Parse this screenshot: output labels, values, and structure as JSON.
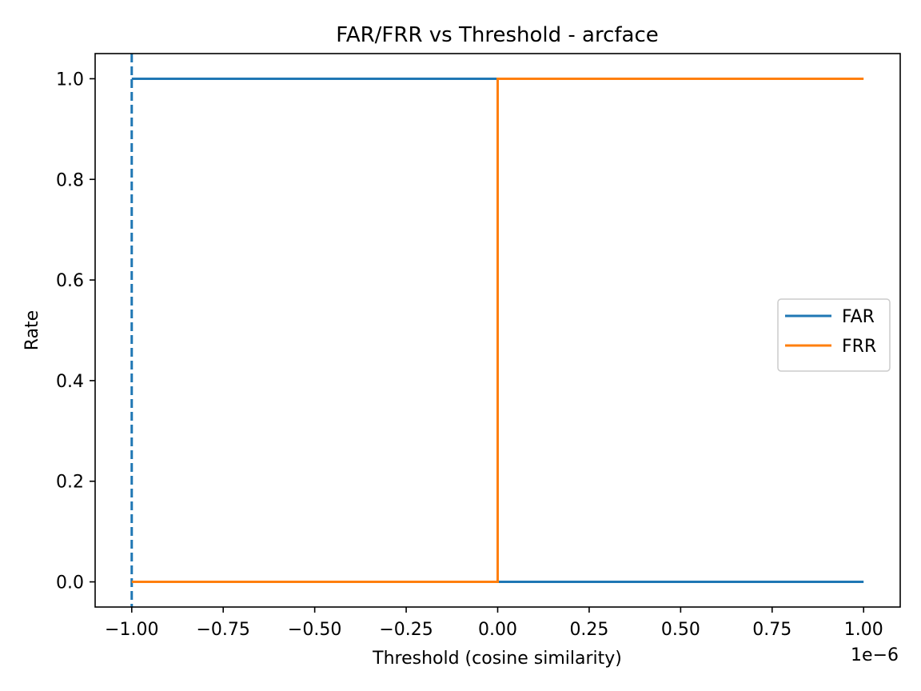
{
  "chart_data": {
    "type": "line",
    "title": "FAR/FRR vs Threshold - arcface",
    "xlabel": "Threshold (cosine similarity)",
    "ylabel": "Rate",
    "x_offset_label": "1e−6",
    "x_scale_multiplier": 1e-06,
    "xlim": [
      -1.1,
      1.1
    ],
    "ylim": [
      -0.05,
      1.05
    ],
    "x_ticks": [
      -1.0,
      -0.75,
      -0.5,
      -0.25,
      0.0,
      0.25,
      0.5,
      0.75,
      1.0
    ],
    "x_tick_labels": [
      "−1.00",
      "−0.75",
      "−0.50",
      "−0.25",
      "0.00",
      "0.25",
      "0.50",
      "0.75",
      "1.00"
    ],
    "y_ticks": [
      0.0,
      0.2,
      0.4,
      0.6,
      0.8,
      1.0
    ],
    "y_tick_labels": [
      "0.0",
      "0.2",
      "0.4",
      "0.6",
      "0.8",
      "1.0"
    ],
    "grid": false,
    "legend_position": "center-right",
    "series": [
      {
        "name": "FAR",
        "color": "#1f77b4",
        "x": [
          -1.0,
          0.0,
          0.0,
          1.0
        ],
        "y": [
          1.0,
          1.0,
          0.0,
          0.0
        ]
      },
      {
        "name": "FRR",
        "color": "#ff7f0e",
        "x": [
          -1.0,
          0.0,
          0.0,
          1.0
        ],
        "y": [
          0.0,
          0.0,
          1.0,
          1.0
        ]
      }
    ],
    "vlines": [
      {
        "x": -1.0,
        "color": "#1f77b4",
        "style": "dashed"
      }
    ]
  }
}
